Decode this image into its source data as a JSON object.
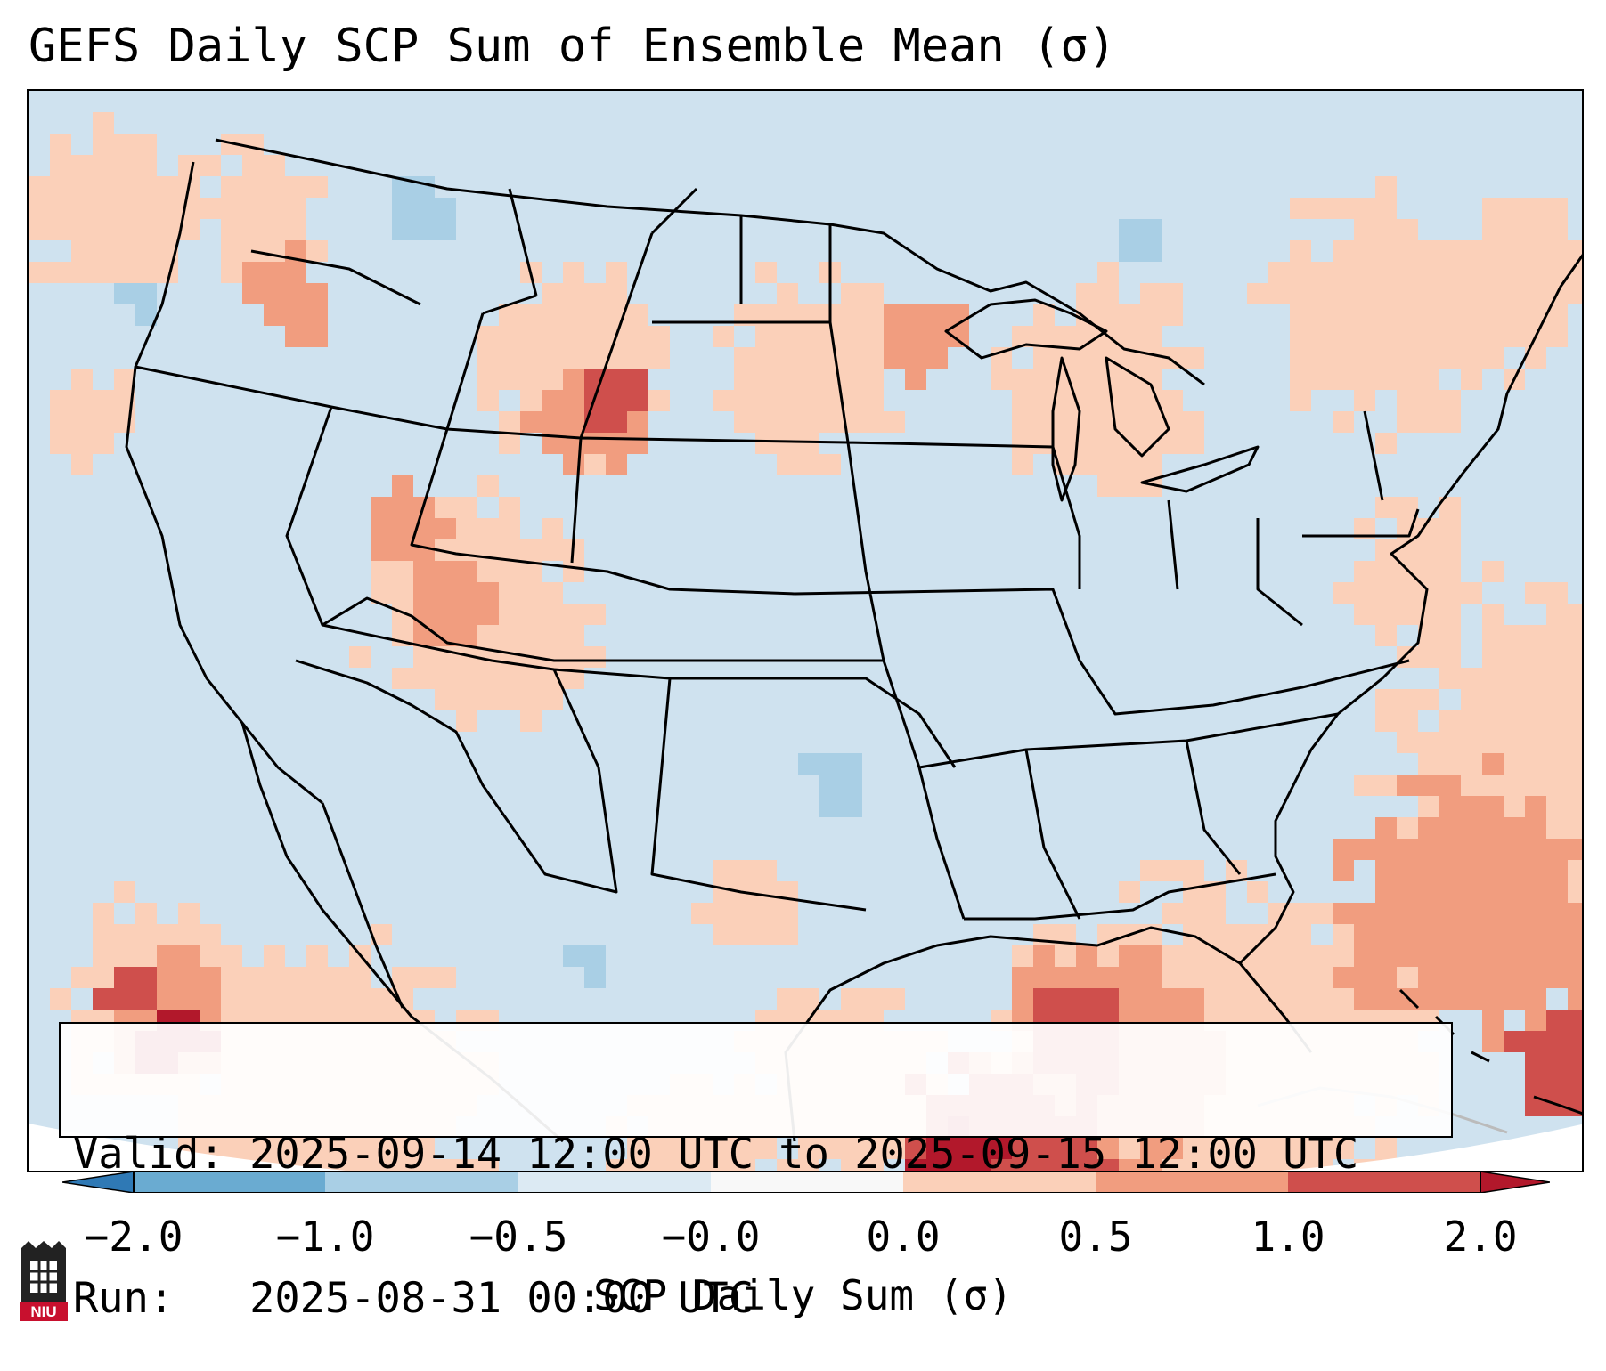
{
  "title": "GEFS Daily SCP Sum of Ensemble Mean (σ)",
  "info": {
    "valid_line": "Valid: 2025-09-14 12:00 UTC to 2025-09-15 12:00 UTC",
    "run_line": "Run:   2025-08-31 00:00 UTC"
  },
  "colorbar": {
    "label": "SCP Daily Sum (σ)",
    "ticks": [
      "−2.0",
      "−1.0",
      "−0.5",
      "−0.0",
      "0.0",
      "0.5",
      "1.0",
      "2.0"
    ],
    "colors": [
      "#2f79b5",
      "#6aabd1",
      "#a9cfe5",
      "#dceaf3",
      "#f8f8f8",
      "#fbd0b9",
      "#f19d7f",
      "#cf4f4c",
      "#b2182b"
    ]
  },
  "logo": {
    "text": "NIU"
  },
  "colors": {
    "background_field": "#cfe2ef",
    "light_blue": "#a9cfe5",
    "light_red": "#fbd0b9",
    "medium_red": "#f19d7f",
    "dark_red": "#cf4f4c",
    "deep_red": "#b2182b",
    "borders": "#000000"
  }
}
